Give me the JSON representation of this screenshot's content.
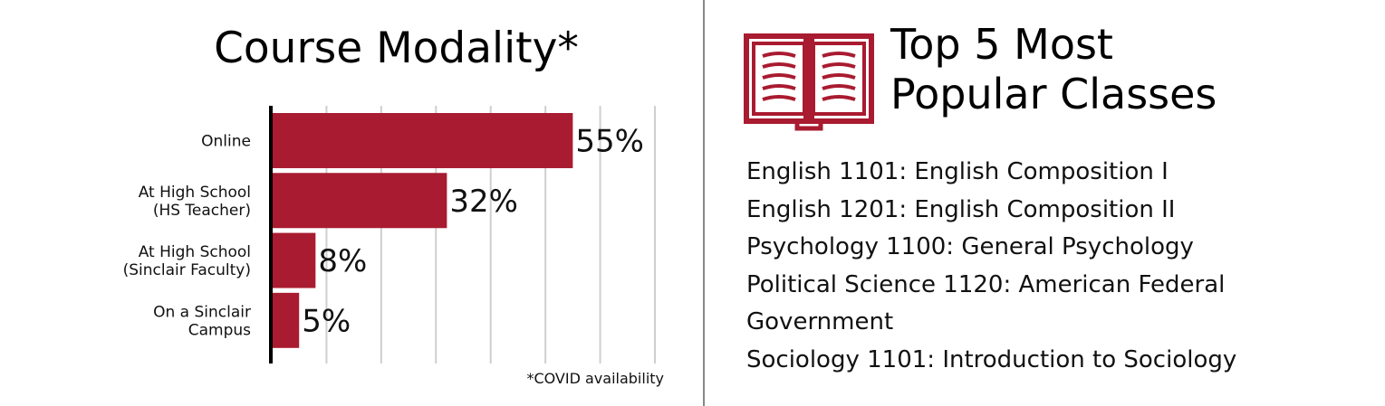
{
  "chart_data": {
    "type": "bar",
    "orientation": "horizontal",
    "title": "Course Modality*",
    "categories": [
      [
        "Online"
      ],
      [
        "At High School",
        "(HS Teacher)"
      ],
      [
        "At High School",
        "(Sinclair Faculty)"
      ],
      [
        "On a Sinclair",
        "Campus"
      ]
    ],
    "values": [
      55,
      32,
      8,
      5
    ],
    "value_labels": [
      "55%",
      "32%",
      "8%",
      "5%"
    ],
    "xlim": [
      0,
      70
    ],
    "grid": true,
    "bar_color": "#a91b30",
    "note": "*COVID availability"
  },
  "classes": {
    "title_lines": [
      "Top 5 Most",
      "Popular Classes"
    ],
    "items": [
      "English 1101: English Composition I",
      "English 1201: English Composition II",
      "Psychology 1100: General Psychology",
      "Political Science 1120: American Federal",
      "Government",
      "Sociology 1101: Introduction to Sociology"
    ],
    "icon": "open-book-icon",
    "icon_color": "#a91b30"
  }
}
